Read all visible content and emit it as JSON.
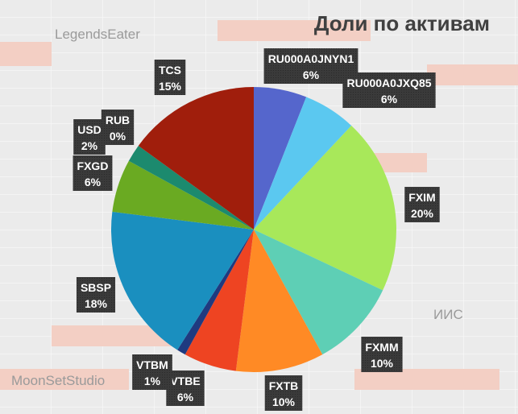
{
  "chart_data": {
    "type": "pie",
    "title": "Доли по активам",
    "categories": [
      "RU000A0JNYN1",
      "RU000A0JXQ85",
      "FXIM",
      "FXMM",
      "FXTB",
      "VTBE",
      "VTBM",
      "SBSP",
      "FXGD",
      "USD",
      "RUB",
      "TCS"
    ],
    "values": [
      6,
      6,
      20,
      10,
      10,
      6,
      1,
      18,
      6,
      2,
      0,
      15
    ],
    "value_labels": [
      "6%",
      "6%",
      "20%",
      "10%",
      "10%",
      "6%",
      "1%",
      "18%",
      "6%",
      "2%",
      "0%",
      "15%"
    ],
    "colors": [
      "#5566cc",
      "#5bc8f0",
      "#a8e85a",
      "#5ecfb5",
      "#ff8a25",
      "#ee4422",
      "#1f3a80",
      "#1a8fbf",
      "#6aaa22",
      "#1c8a6e",
      "#cc5522",
      "#a01e0c"
    ]
  },
  "watermarks": [
    "LegendsEater",
    "MoonSetStudio",
    "ИИС"
  ]
}
